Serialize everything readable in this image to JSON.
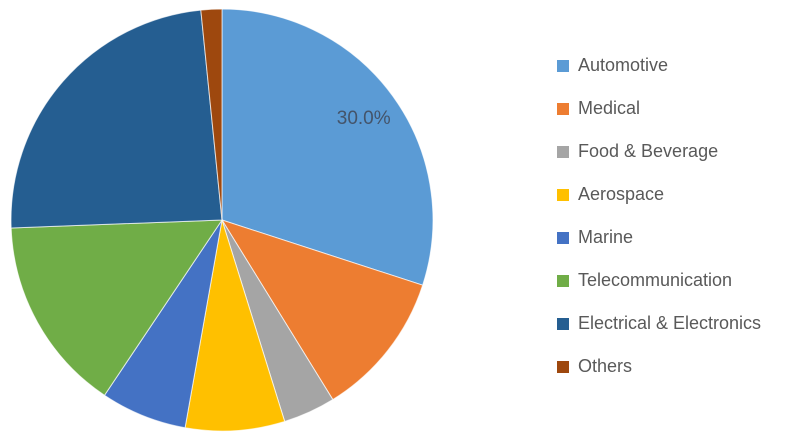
{
  "page": {
    "background_color": "#ffffff"
  },
  "chart_data": {
    "type": "pie",
    "title": "",
    "categories": [
      "Automotive",
      "Medical",
      "Food & Beverage",
      "Aerospace",
      "Marine",
      "Telecommunication",
      "Electrical & Electronics",
      "Others"
    ],
    "values": [
      30.0,
      11.2,
      4.0,
      7.6,
      6.6,
      15.0,
      24.0,
      1.6
    ],
    "unit": "percent",
    "colors": [
      "#5B9BD5",
      "#ED7D31",
      "#A5A5A5",
      "#FFC000",
      "#4472C4",
      "#70AD47",
      "#255E91",
      "#9E480E"
    ],
    "data_labels": [
      "30.0%",
      "",
      "",
      "",
      "",
      "",
      "",
      ""
    ],
    "data_label_color": "#44546A",
    "start_angle_deg": 0,
    "direction": "clockwise",
    "legend_position": "right",
    "legend_text_color": "#595959"
  }
}
